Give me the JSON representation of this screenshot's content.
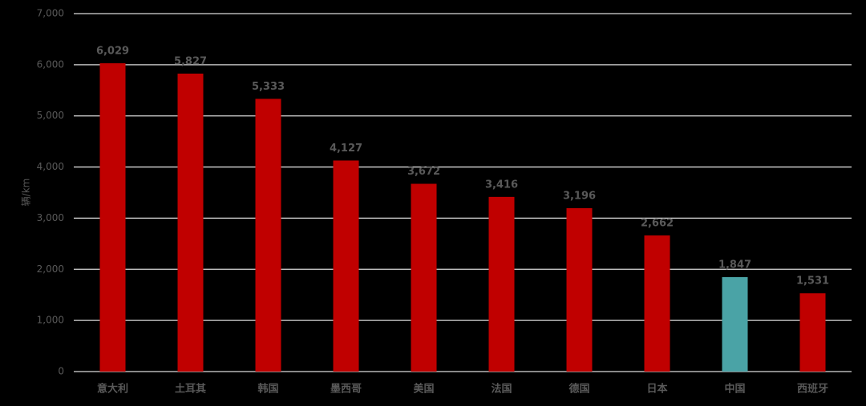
{
  "chart_data": {
    "type": "bar",
    "y_axis_label": "辆/km",
    "categories": [
      "意大利",
      "土耳其",
      "韩国",
      "墨西哥",
      "美国",
      "法国",
      "德国",
      "日本",
      "中国",
      "西班牙"
    ],
    "values": [
      6029,
      5827,
      5333,
      4127,
      3672,
      3416,
      3196,
      2662,
      1847,
      1531
    ],
    "value_labels": [
      "6,029",
      "5,827",
      "5,333",
      "4,127",
      "3,672",
      "3,416",
      "3,196",
      "2,662",
      "1,847",
      "1,531"
    ],
    "colors": [
      "#c00000",
      "#c00000",
      "#c00000",
      "#c00000",
      "#c00000",
      "#c00000",
      "#c00000",
      "#c00000",
      "#4aa3a6",
      "#c00000"
    ],
    "ylim": [
      0,
      7000
    ],
    "yticks": [
      0,
      {
        "value": 1000,
        "label": "1,000"
      },
      {
        "value": 2000,
        "label": "2,000"
      },
      {
        "value": 3000,
        "label": "3,000"
      },
      {
        "value": 4000,
        "label": "4,000"
      },
      {
        "value": 5000,
        "label": "5,000"
      },
      {
        "value": 6000,
        "label": "6,000"
      },
      {
        "value": 7000,
        "label": "7,000"
      }
    ],
    "grid": true
  }
}
